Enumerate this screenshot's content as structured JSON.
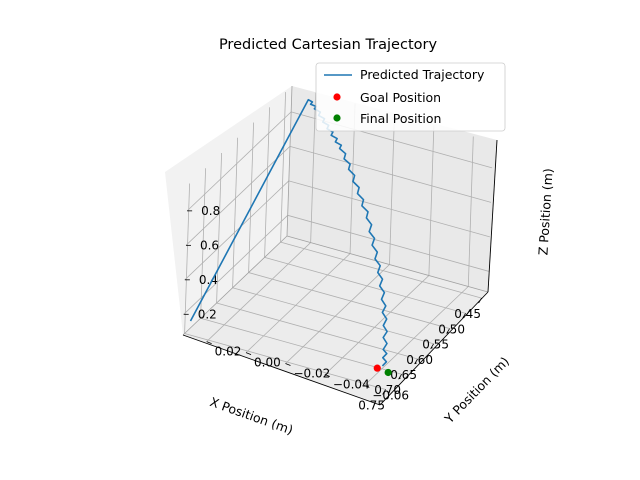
{
  "chart_data": {
    "type": "line3d",
    "title": "Predicted Cartesian Trajectory",
    "xlabel": "X Position (m)",
    "ylabel": "Y Position (m)",
    "zlabel": "Z Position (m)",
    "x_ticks": [
      "0.45",
      "0.50",
      "0.55",
      "0.60",
      "0.65",
      "0.70",
      "0.75"
    ],
    "y_ticks": [
      "−0.06",
      "−0.04",
      "−0.02",
      "0.00",
      "0.02"
    ],
    "z_ticks": [
      "0.2",
      "0.4",
      "0.6",
      "0.8"
    ],
    "grid": true,
    "legend_position": "top-right",
    "series": [
      {
        "name": "Predicted Trajectory",
        "type": "line",
        "color": "#1f77b4",
        "points": [
          {
            "x": 0.745,
            "y": 0.03,
            "z": 0.15
          },
          {
            "x": 0.44,
            "y": 0.022,
            "z": 0.92
          },
          {
            "x": 0.44,
            "y": 0.018,
            "z": 0.88
          },
          {
            "x": 0.45,
            "y": 0.012,
            "z": 0.84
          },
          {
            "x": 0.46,
            "y": 0.006,
            "z": 0.8
          },
          {
            "x": 0.47,
            "y": 0.0,
            "z": 0.76
          },
          {
            "x": 0.49,
            "y": -0.008,
            "z": 0.7
          },
          {
            "x": 0.51,
            "y": -0.016,
            "z": 0.62
          },
          {
            "x": 0.53,
            "y": -0.024,
            "z": 0.54
          },
          {
            "x": 0.56,
            "y": -0.032,
            "z": 0.46
          },
          {
            "x": 0.59,
            "y": -0.04,
            "z": 0.38
          },
          {
            "x": 0.62,
            "y": -0.047,
            "z": 0.3
          },
          {
            "x": 0.65,
            "y": -0.053,
            "z": 0.22
          },
          {
            "x": 0.68,
            "y": -0.058,
            "z": 0.15
          },
          {
            "x": 0.7,
            "y": -0.061,
            "z": 0.1
          }
        ]
      },
      {
        "name": "Goal Position",
        "type": "scatter",
        "color": "#ff0000",
        "points": [
          {
            "x": 0.715,
            "y": -0.06,
            "z": 0.11
          }
        ]
      },
      {
        "name": "Final Position",
        "type": "scatter",
        "color": "#008000",
        "points": [
          {
            "x": 0.705,
            "y": -0.064,
            "z": 0.08
          }
        ]
      }
    ]
  }
}
